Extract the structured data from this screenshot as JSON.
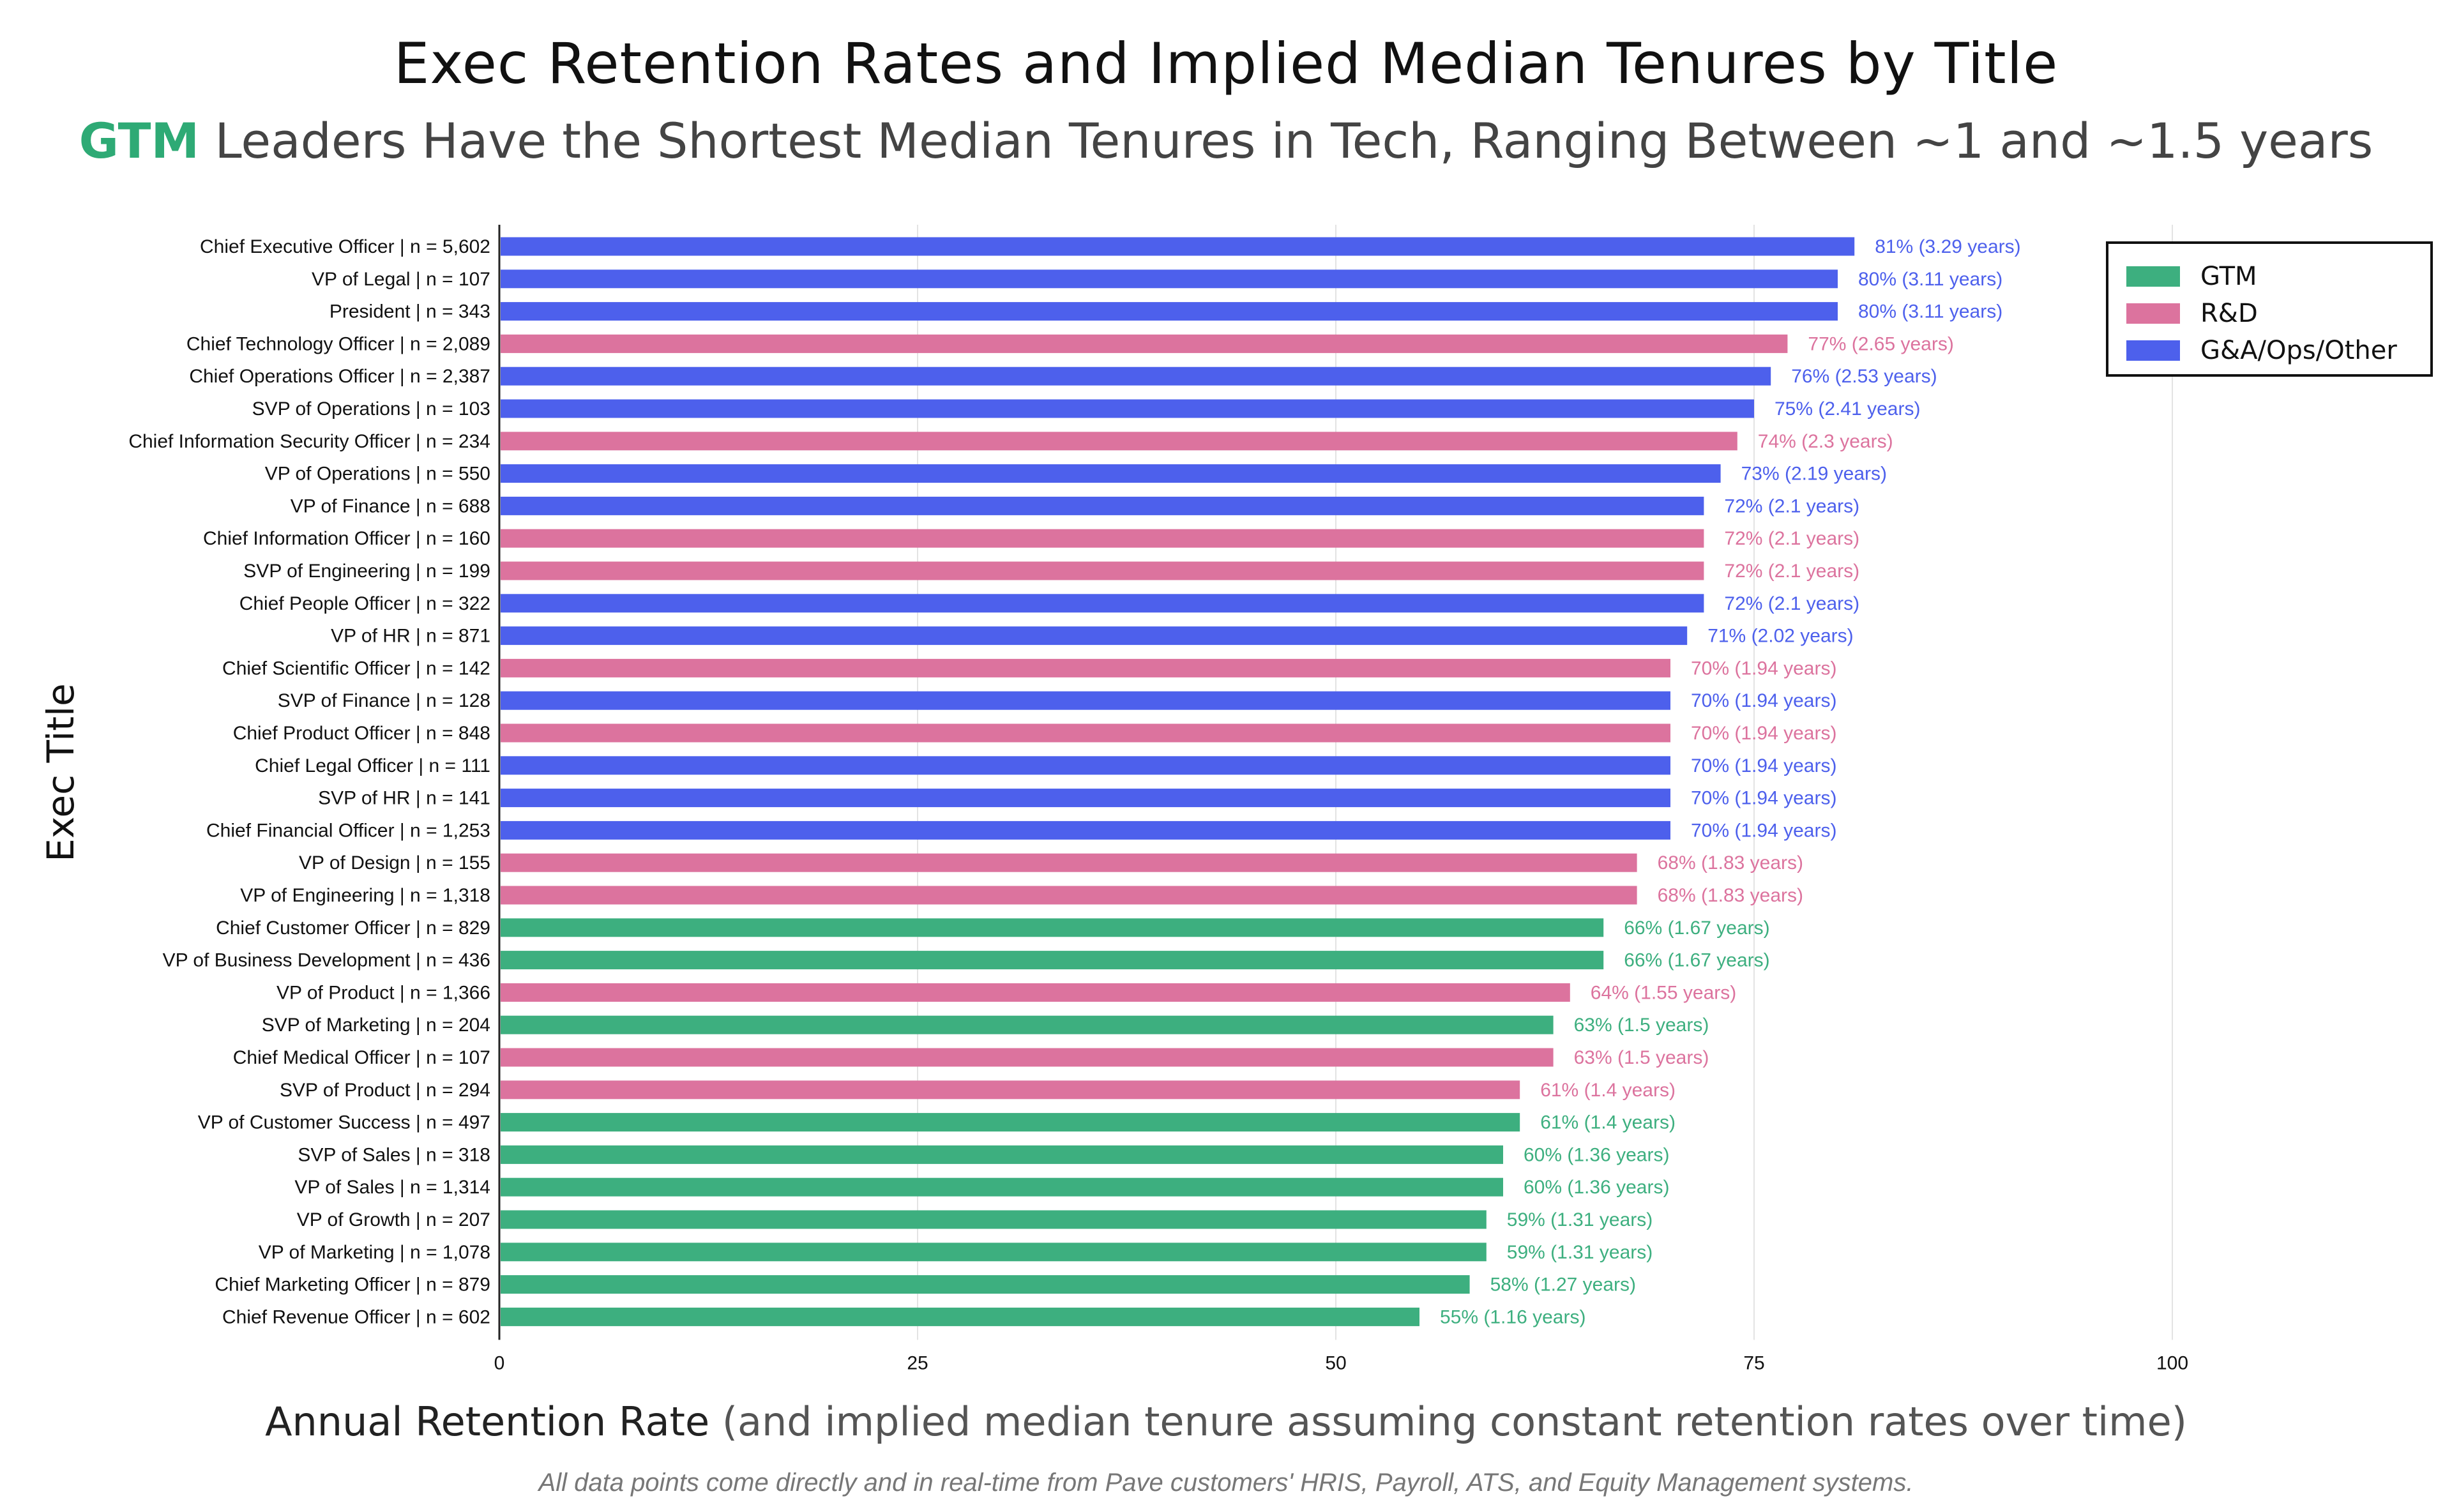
{
  "header": {
    "title": "Exec Retention Rates and Implied Median Tenures by Title",
    "subtitle_highlight": "GTM",
    "subtitle_rest": " Leaders Have the Shortest Median Tenures in Tech, Ranging Between ~1 and ~1.5 years"
  },
  "axis": {
    "ylabel": "Exec Title",
    "xlabel_main": "Annual Retention Rate",
    "xlabel_rest": " (and implied median tenure assuming constant retention rates over time)"
  },
  "footnote": "All data points come directly and in real-time from Pave customers' HRIS, Payroll, ATS, and Equity Management systems.",
  "colors": {
    "GTM": "#3daf7f",
    "R&D": "#dc739e",
    "G&A/Ops/Other": "#4d60ec"
  },
  "legend": [
    {
      "label": "GTM",
      "color": "#3daf7f"
    },
    {
      "label": "R&D",
      "color": "#dc739e"
    },
    {
      "label": "G&A/Ops/Other",
      "color": "#4d60ec"
    }
  ],
  "chart_data": {
    "type": "bar",
    "orientation": "horizontal",
    "xlim": [
      0,
      100
    ],
    "xticks": [
      0,
      25,
      50,
      75,
      100
    ],
    "grid": "vertical",
    "legend_position": "top-right",
    "categories": [
      "Chief Executive Officer | n = 5,602",
      "VP of Legal | n = 107",
      "President | n = 343",
      "Chief Technology Officer | n = 2,089",
      "Chief Operations Officer | n = 2,387",
      "SVP of Operations | n = 103",
      "Chief Information Security Officer | n = 234",
      "VP of Operations | n = 550",
      "VP of Finance | n = 688",
      "Chief Information Officer | n = 160",
      "SVP of Engineering | n = 199",
      "Chief People Officer | n = 322",
      "VP of HR | n = 871",
      "Chief Scientific Officer | n = 142",
      "SVP of Finance | n = 128",
      "Chief Product Officer | n = 848",
      "Chief Legal Officer | n = 111",
      "SVP of HR | n = 141",
      "Chief Financial Officer | n = 1,253",
      "VP of Design | n = 155",
      "VP of Engineering | n = 1,318",
      "Chief Customer Officer | n = 829",
      "VP of Business Development | n = 436",
      "VP of Product | n = 1,366",
      "SVP of Marketing | n = 204",
      "Chief Medical Officer | n = 107",
      "SVP of Product | n = 294",
      "VP of Customer Success | n = 497",
      "SVP of Sales | n = 318",
      "VP of Sales | n = 1,314",
      "VP of Growth | n = 207",
      "VP of Marketing | n = 1,078",
      "Chief Marketing Officer | n = 879",
      "Chief Revenue Officer | n = 602"
    ],
    "values": [
      81,
      80,
      80,
      77,
      76,
      75,
      74,
      73,
      72,
      72,
      72,
      72,
      71,
      70,
      70,
      70,
      70,
      70,
      70,
      68,
      68,
      66,
      66,
      64,
      63,
      63,
      61,
      61,
      60,
      60,
      59,
      59,
      58,
      55
    ],
    "groups": [
      "G&A/Ops/Other",
      "G&A/Ops/Other",
      "G&A/Ops/Other",
      "R&D",
      "G&A/Ops/Other",
      "G&A/Ops/Other",
      "R&D",
      "G&A/Ops/Other",
      "G&A/Ops/Other",
      "R&D",
      "R&D",
      "G&A/Ops/Other",
      "G&A/Ops/Other",
      "R&D",
      "G&A/Ops/Other",
      "R&D",
      "G&A/Ops/Other",
      "G&A/Ops/Other",
      "G&A/Ops/Other",
      "R&D",
      "R&D",
      "GTM",
      "GTM",
      "R&D",
      "GTM",
      "R&D",
      "R&D",
      "GTM",
      "GTM",
      "GTM",
      "GTM",
      "GTM",
      "GTM",
      "GTM"
    ],
    "data_labels": [
      "81% (3.29 years)",
      "80% (3.11 years)",
      "80% (3.11 years)",
      "77% (2.65 years)",
      "76% (2.53 years)",
      "75% (2.41 years)",
      "74% (2.3 years)",
      "73% (2.19 years)",
      "72% (2.1 years)",
      "72% (2.1 years)",
      "72% (2.1 years)",
      "72% (2.1 years)",
      "71% (2.02 years)",
      "70% (1.94 years)",
      "70% (1.94 years)",
      "70% (1.94 years)",
      "70% (1.94 years)",
      "70% (1.94 years)",
      "70% (1.94 years)",
      "68% (1.83 years)",
      "68% (1.83 years)",
      "66% (1.67 years)",
      "66% (1.67 years)",
      "64% (1.55 years)",
      "63% (1.5 years)",
      "63% (1.5 years)",
      "61% (1.4 years)",
      "61% (1.4 years)",
      "60% (1.36 years)",
      "60% (1.36 years)",
      "59% (1.31 years)",
      "59% (1.31 years)",
      "58% (1.27 years)",
      "55% (1.16 years)"
    ]
  }
}
